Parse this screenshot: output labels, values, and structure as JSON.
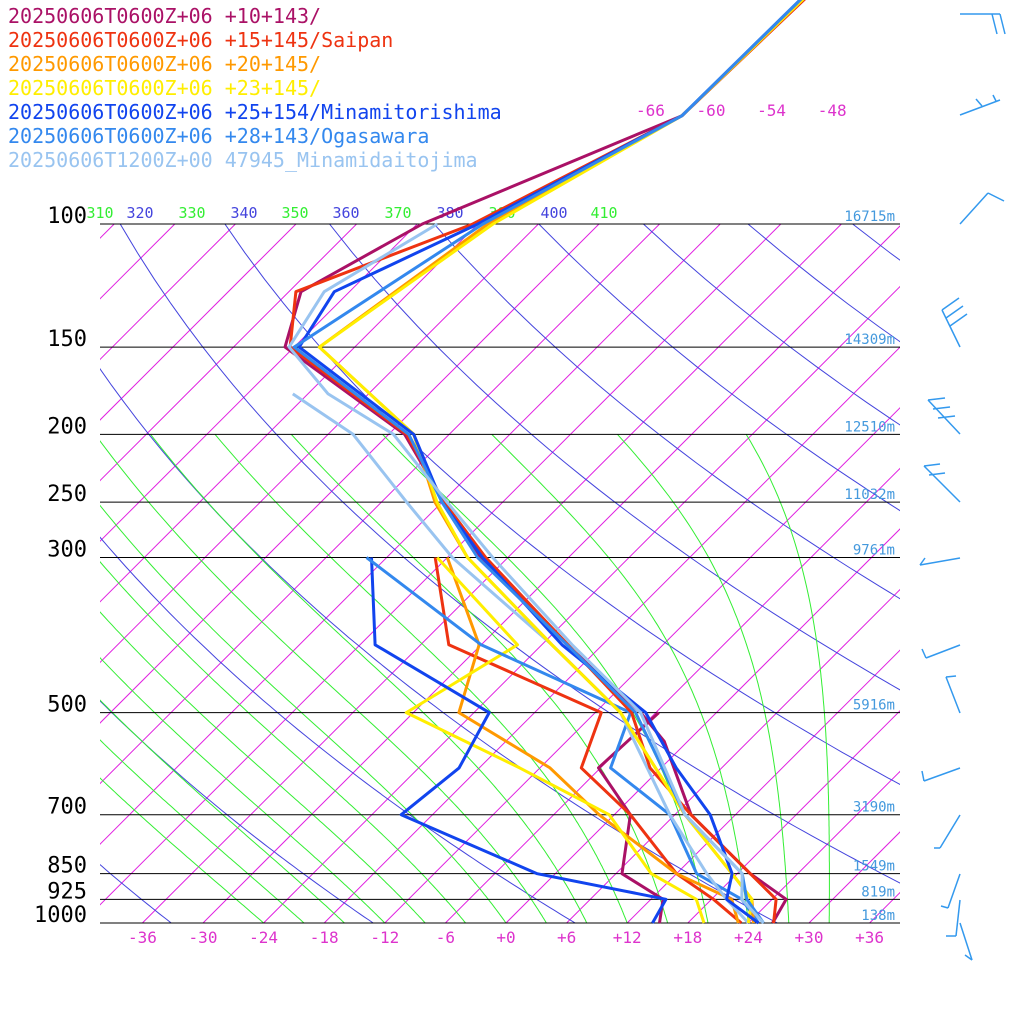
{
  "chart_data": {
    "type": "line",
    "subtype": "skew-T log-P sounding diagram",
    "title": "",
    "legend_placement": "top-left",
    "x_unit": "°C",
    "y_unit": "hPa",
    "pressure_levels": [
      {
        "p": 100,
        "label": "100",
        "height": "16715m"
      },
      {
        "p": 150,
        "label": "150",
        "height": "14309m"
      },
      {
        "p": 200,
        "label": "200",
        "height": "12510m"
      },
      {
        "p": 250,
        "label": "250",
        "height": "11032m"
      },
      {
        "p": 300,
        "label": "300",
        "height": "9761m"
      },
      {
        "p": 500,
        "label": "500",
        "height": "5916m"
      },
      {
        "p": 700,
        "label": "700",
        "height": "3190m"
      },
      {
        "p": 850,
        "label": "850",
        "height": "1549m"
      },
      {
        "p": 925,
        "label": "925",
        "height": "819m"
      },
      {
        "p": 1000,
        "label": "1000",
        "height": "138m"
      }
    ],
    "x_ticks": [
      {
        "t": -36,
        "label": "-36"
      },
      {
        "t": -30,
        "label": "-30"
      },
      {
        "t": -24,
        "label": "-24"
      },
      {
        "t": -18,
        "label": "-18"
      },
      {
        "t": -12,
        "label": "-12"
      },
      {
        "t": -6,
        "label": "-6"
      },
      {
        "t": 0,
        "label": "+0"
      },
      {
        "t": 6,
        "label": "+6"
      },
      {
        "t": 12,
        "label": "+12"
      },
      {
        "t": 18,
        "label": "+18"
      },
      {
        "t": 24,
        "label": "+24"
      },
      {
        "t": 30,
        "label": "+30"
      },
      {
        "t": 36,
        "label": "+36"
      }
    ],
    "top_isotherm_labels": [
      {
        "t": -66,
        "label": "-66"
      },
      {
        "t": -60,
        "label": "-60"
      },
      {
        "t": -54,
        "label": "-54"
      },
      {
        "t": -48,
        "label": "-48"
      }
    ],
    "theta_e_labels": [
      {
        "label": "310",
        "color": "#33ee33"
      },
      {
        "label": "320",
        "color": "#4444dd"
      },
      {
        "label": "330",
        "color": "#33ee33"
      },
      {
        "label": "340",
        "color": "#4444dd"
      },
      {
        "label": "350",
        "color": "#33ee33"
      },
      {
        "label": "360",
        "color": "#4444dd"
      },
      {
        "label": "370",
        "color": "#33ee33"
      },
      {
        "label": "380",
        "color": "#4444dd"
      },
      {
        "label": "390",
        "color": "#33ee33"
      },
      {
        "label": "400",
        "color": "#4444dd"
      },
      {
        "label": "410",
        "color": "#33ee33"
      }
    ],
    "colors": {
      "isobar": "#000000",
      "isotherm": "#e020e0",
      "dry_adiabat": "#4444dd",
      "moist_adiabat": "#33ee33",
      "tick_label": "#dd33cc",
      "height_label": "#4499dd",
      "wind_barb": "#3399ee"
    },
    "series": [
      {
        "name": "20250606T0600Z+06 +10+143/",
        "color": "#aa1166",
        "temperature": [
          [
            30,
            -61.2
          ],
          [
            70,
            -62.5
          ],
          [
            100,
            -77.5
          ],
          [
            125,
            -82.8
          ],
          [
            150,
            -78.9
          ],
          [
            200,
            -58.4
          ],
          [
            250,
            -47.8
          ],
          [
            300,
            -38.8
          ],
          [
            400,
            -21.5
          ],
          [
            500,
            -7.5
          ],
          [
            550,
            -2.3
          ],
          [
            700,
            7.6
          ],
          [
            850,
            19.3
          ],
          [
            925,
            25.4
          ],
          [
            1000,
            26.4
          ]
        ],
        "dewpoint": [
          [
            500,
            -5.7
          ],
          [
            600,
            -6.2
          ],
          [
            700,
            1.6
          ],
          [
            850,
            6.6
          ],
          [
            925,
            13.2
          ],
          [
            1000,
            15.2
          ]
        ]
      },
      {
        "name": "20250606T0600Z+06 +15+145/Saipan",
        "color": "#ee3311",
        "temperature": [
          [
            30,
            -61.2
          ],
          [
            70,
            -62.5
          ],
          [
            100,
            -72.5
          ],
          [
            125,
            -83.3
          ],
          [
            150,
            -78.4
          ],
          [
            200,
            -58.2
          ],
          [
            250,
            -47.8
          ],
          [
            300,
            -38.2
          ],
          [
            400,
            -21.4
          ],
          [
            500,
            -8.4
          ],
          [
            600,
            -1.1
          ],
          [
            700,
            7.6
          ],
          [
            850,
            19.3
          ],
          [
            925,
            24.4
          ],
          [
            1000,
            26.5
          ]
        ],
        "dewpoint": [
          [
            300,
            -43.2
          ],
          [
            400,
            -33.2
          ],
          [
            500,
            -11.4
          ],
          [
            600,
            -7.9
          ],
          [
            700,
            1.6
          ],
          [
            850,
            12.0
          ],
          [
            925,
            18.2
          ],
          [
            1000,
            23.3
          ]
        ]
      },
      {
        "name": "20250606T0600Z+06 +20+145/",
        "color": "#ff9900",
        "temperature": [
          [
            30,
            -61.5
          ],
          [
            70,
            -62.5
          ],
          [
            100,
            -71.0
          ],
          [
            150,
            -75.5
          ],
          [
            200,
            -57.5
          ],
          [
            250,
            -48.7
          ],
          [
            300,
            -40.0
          ],
          [
            400,
            -23.0
          ],
          [
            500,
            -9.5
          ],
          [
            700,
            7.0
          ],
          [
            850,
            17.5
          ],
          [
            925,
            22.0
          ],
          [
            1000,
            24.5
          ]
        ],
        "dewpoint": [
          [
            300,
            -42.0
          ],
          [
            400,
            -30.2
          ],
          [
            500,
            -25.5
          ],
          [
            600,
            -11.0
          ],
          [
            700,
            -1.5
          ],
          [
            850,
            12.0
          ],
          [
            925,
            20.0
          ],
          [
            1000,
            23.0
          ]
        ]
      },
      {
        "name": "20250606T0600Z+06 +23+145/",
        "color": "#ffee00",
        "temperature": [
          [
            30,
            -61.5
          ],
          [
            70,
            -62.5
          ],
          [
            100,
            -70.5
          ],
          [
            150,
            -75.5
          ],
          [
            200,
            -57.5
          ],
          [
            250,
            -48.5
          ],
          [
            300,
            -40.0
          ],
          [
            400,
            -23.0
          ],
          [
            500,
            -9.5
          ],
          [
            700,
            7.0
          ],
          [
            850,
            17.5
          ],
          [
            925,
            22.0
          ],
          [
            1000,
            24.0
          ]
        ],
        "dewpoint": [
          [
            300,
            -43.0
          ],
          [
            400,
            -26.4
          ],
          [
            500,
            -30.7
          ],
          [
            600,
            -14.0
          ],
          [
            700,
            -0.5
          ],
          [
            850,
            9.5
          ],
          [
            925,
            16.5
          ],
          [
            1000,
            19.6
          ]
        ]
      },
      {
        "name": "20250606T0600Z+06 +25+154/Minamitorishima",
        "color": "#1144ee",
        "temperature": [
          [
            30,
            -62.0
          ],
          [
            70,
            -62.5
          ],
          [
            100,
            -72.0
          ],
          [
            125,
            -79.5
          ],
          [
            150,
            -77.5
          ],
          [
            200,
            -57.5
          ],
          [
            250,
            -48.0
          ],
          [
            300,
            -38.5
          ],
          [
            400,
            -22.0
          ],
          [
            500,
            -7.0
          ],
          [
            600,
            1.5
          ],
          [
            700,
            9.5
          ],
          [
            850,
            17.5
          ],
          [
            925,
            19.5
          ],
          [
            1000,
            25.0
          ]
        ],
        "dewpoint": [
          [
            300,
            -49.5
          ],
          [
            400,
            -40.5
          ],
          [
            500,
            -22.5
          ],
          [
            600,
            -20.0
          ],
          [
            700,
            -21.1
          ],
          [
            850,
            -1.8
          ],
          [
            925,
            13.5
          ],
          [
            1000,
            14.5
          ]
        ]
      },
      {
        "name": "20250606T0600Z+06 +28+143/Ogasawara",
        "color": "#3388ee",
        "temperature": [
          [
            30,
            -62.0
          ],
          [
            70,
            -62.5
          ],
          [
            100,
            -71.5
          ],
          [
            150,
            -78.0
          ],
          [
            200,
            -58.0
          ],
          [
            250,
            -48.0
          ],
          [
            300,
            -39.0
          ],
          [
            400,
            -21.5
          ],
          [
            500,
            -8.0
          ],
          [
            700,
            7.0
          ],
          [
            850,
            18.5
          ],
          [
            925,
            21.5
          ],
          [
            1000,
            25.5
          ]
        ],
        "dewpoint": [
          [
            300,
            -50.0
          ],
          [
            400,
            -30.0
          ],
          [
            500,
            -8.5
          ],
          [
            600,
            -5.0
          ],
          [
            700,
            5.5
          ],
          [
            850,
            14.0
          ],
          [
            925,
            21.0
          ],
          [
            1000,
            25.0
          ]
        ]
      },
      {
        "name": "20250606T1200Z+00 47945_Minamidaitojima",
        "color": "#99c4f0",
        "temperature": [
          [
            100,
            -76.0
          ],
          [
            125,
            -80.5
          ],
          [
            150,
            -78.5
          ],
          [
            175,
            -70.0
          ],
          [
            200,
            -59.5
          ],
          [
            250,
            -47.5
          ],
          [
            300,
            -37.5
          ],
          [
            400,
            -21.0
          ],
          [
            500,
            -7.5
          ],
          [
            700,
            7.0
          ],
          [
            850,
            18.5
          ],
          [
            925,
            21.0
          ],
          [
            1000,
            25.5
          ]
        ],
        "dewpoint": [
          [
            175,
            -73.5
          ],
          [
            200,
            -63.5
          ],
          [
            250,
            -51.5
          ],
          [
            300,
            -41.5
          ],
          [
            400,
            -23.0
          ],
          [
            500,
            -9.5
          ],
          [
            700,
            5.5
          ],
          [
            850,
            15.0
          ],
          [
            925,
            19.5
          ],
          [
            1000,
            24.0
          ]
        ]
      }
    ]
  }
}
